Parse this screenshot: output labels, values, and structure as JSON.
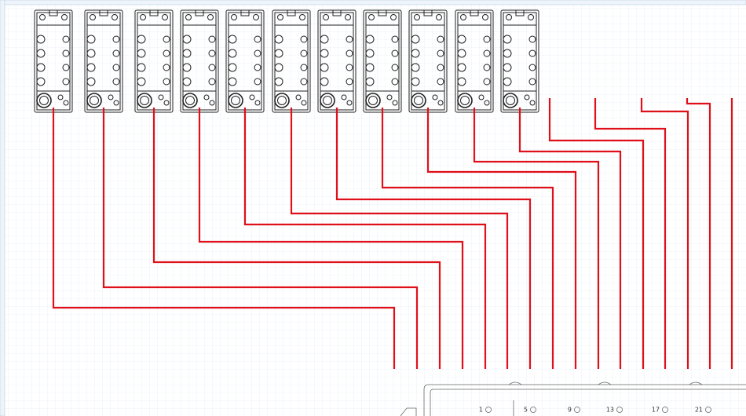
{
  "terminal_labels": [
    "1",
    "5",
    "9",
    "13",
    "17",
    "21"
  ]
}
